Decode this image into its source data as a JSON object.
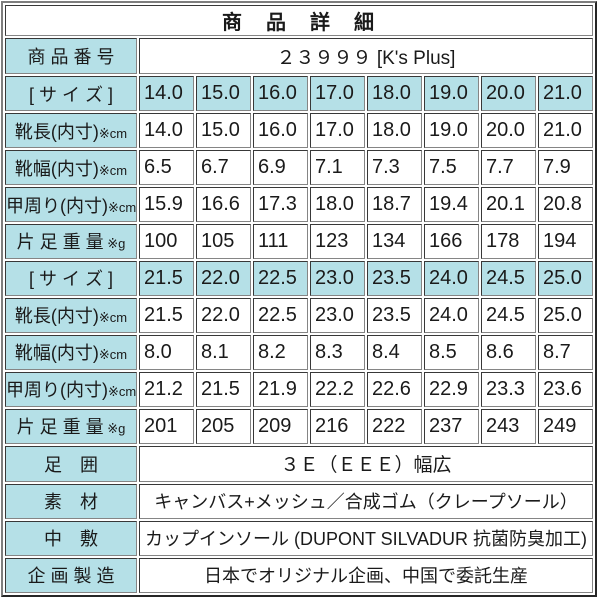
{
  "title": "商　品　詳　細",
  "product_number": {
    "label": "商 品 番 号",
    "value": "２３９９９ [K's Plus]"
  },
  "size_table": {
    "row_labels": {
      "size": "[ サ イ ズ ]",
      "length": "靴長(内寸)",
      "width": "靴幅(内寸)",
      "girth": "甲周り(内寸)",
      "weight": "片 足 重 量",
      "cm_suffix": "※cm",
      "g_suffix": " ※g"
    },
    "blocks": [
      {
        "sizes": [
          "14.0",
          "15.0",
          "16.0",
          "17.0",
          "18.0",
          "19.0",
          "20.0",
          "21.0"
        ],
        "length": [
          "14.0",
          "15.0",
          "16.0",
          "17.0",
          "18.0",
          "19.0",
          "20.0",
          "21.0"
        ],
        "width": [
          "6.5",
          "6.7",
          "6.9",
          "7.1",
          "7.3",
          "7.5",
          "7.7",
          "7.9"
        ],
        "girth": [
          "15.9",
          "16.6",
          "17.3",
          "18.0",
          "18.7",
          "19.4",
          "20.1",
          "20.8"
        ],
        "weight": [
          "100",
          "105",
          "111",
          "123",
          "134",
          "166",
          "178",
          "194"
        ]
      },
      {
        "sizes": [
          "21.5",
          "22.0",
          "22.5",
          "23.0",
          "23.5",
          "24.0",
          "24.5",
          "25.0"
        ],
        "length": [
          "21.5",
          "22.0",
          "22.5",
          "23.0",
          "23.5",
          "24.0",
          "24.5",
          "25.0"
        ],
        "width": [
          "8.0",
          "8.1",
          "8.2",
          "8.3",
          "8.4",
          "8.5",
          "8.6",
          "8.7"
        ],
        "girth": [
          "21.2",
          "21.5",
          "21.9",
          "22.2",
          "22.6",
          "22.9",
          "23.3",
          "23.6"
        ],
        "weight": [
          "201",
          "205",
          "209",
          "216",
          "222",
          "237",
          "243",
          "249"
        ]
      }
    ]
  },
  "info_rows": [
    {
      "label": "足　囲",
      "value": "３Ｅ（ＥＥＥ）幅広"
    },
    {
      "label": "素　材",
      "value": "キャンバス+メッシュ／合成ゴム（クレープソール）"
    },
    {
      "label": "中　敷",
      "value": "カップインソール (DUPONT SILVADUR 抗菌防臭加工)"
    },
    {
      "label": "企 画 製 造",
      "value": "日本でオリジナル企画、中国で委託生産"
    }
  ],
  "colors": {
    "label_background": "#b5e0e7",
    "cell_background": "#ffffff",
    "border_dark": "#383838",
    "border_light": "#858585",
    "text": "#1a1a1a"
  }
}
